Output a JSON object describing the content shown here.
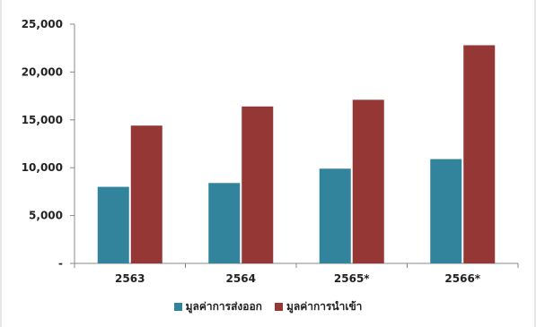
{
  "chart_data": {
    "type": "bar",
    "title": "",
    "xlabel": "",
    "ylabel": "",
    "categories": [
      "2563",
      "2564",
      "2565*",
      "2566*"
    ],
    "series": [
      {
        "name": "มูลค่าการส่งออก",
        "color": "#31849b",
        "values": [
          8000,
          8400,
          9900,
          10900
        ]
      },
      {
        "name": "มูลค่าการนำเข้า",
        "color": "#953735",
        "values": [
          14400,
          16400,
          17100,
          22800
        ]
      }
    ],
    "ylim": [
      0,
      25000
    ],
    "yticks": [
      {
        "value": 0,
        "label": "-"
      },
      {
        "value": 5000,
        "label": "5,000"
      },
      {
        "value": 10000,
        "label": "10,000"
      },
      {
        "value": 15000,
        "label": "15,000"
      },
      {
        "value": 20000,
        "label": "20,000"
      },
      {
        "value": 25000,
        "label": "25,000"
      }
    ],
    "grid": false,
    "legend_position": "bottom"
  }
}
